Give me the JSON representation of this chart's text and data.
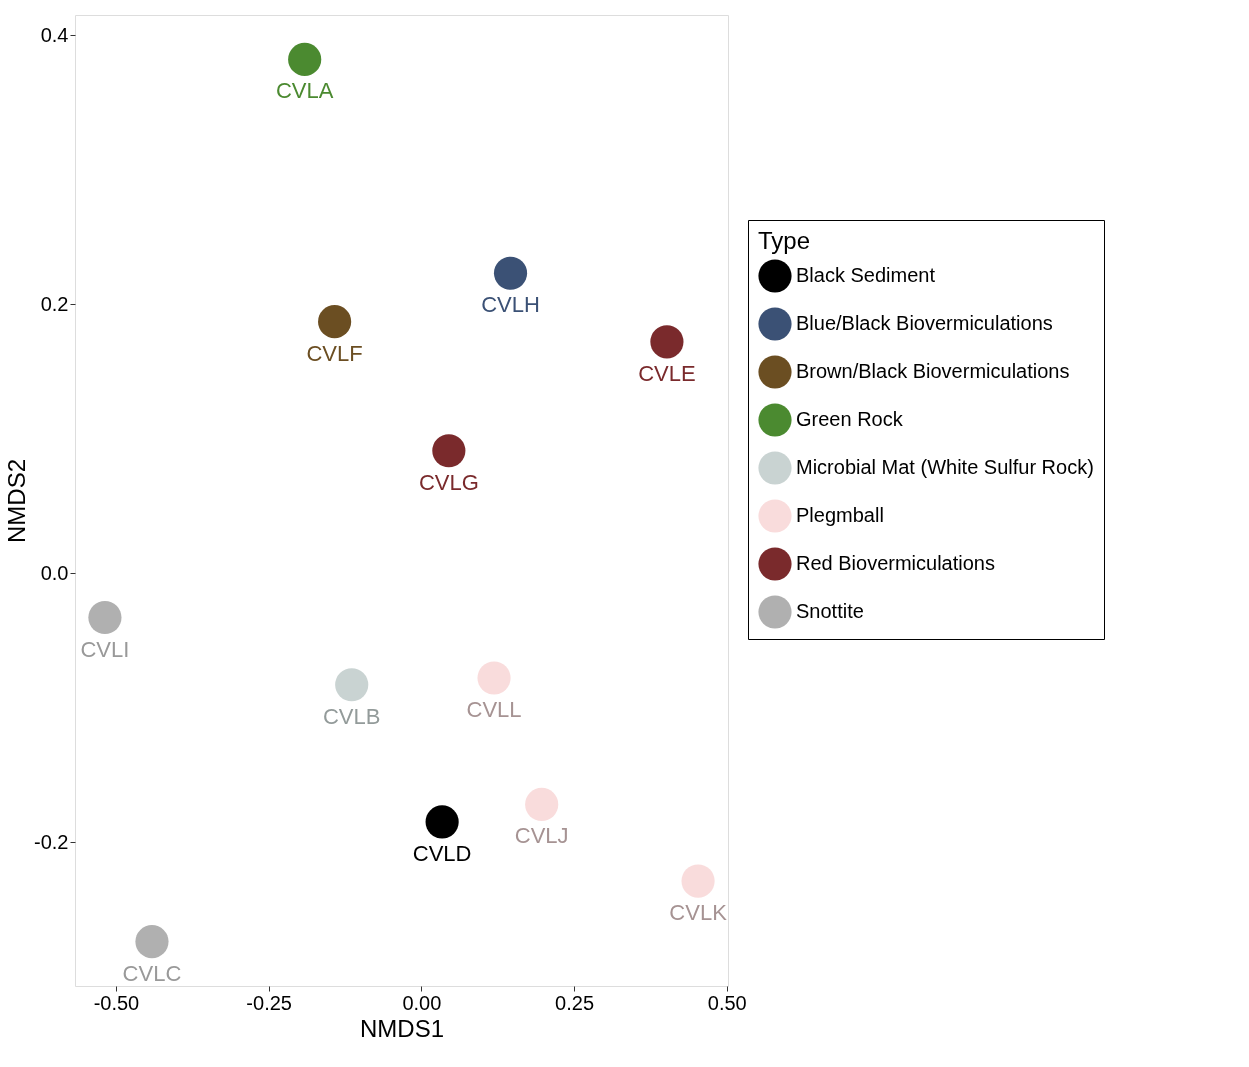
{
  "chart_data": {
    "type": "scatter",
    "xlabel": "NMDS1",
    "ylabel": "NMDS2",
    "legend_title": "Type",
    "legend": "right",
    "grid": false,
    "marker": "circle",
    "xlim": [
      -0.567,
      0.502
    ],
    "ylim": [
      -0.307,
      0.415
    ],
    "xticks": [
      {
        "value": -0.5,
        "label": "-0.50"
      },
      {
        "value": -0.25,
        "label": "-0.25"
      },
      {
        "value": 0,
        "label": "0.00"
      },
      {
        "value": 0.25,
        "label": "0.25"
      },
      {
        "value": 0.5,
        "label": "0.50"
      }
    ],
    "yticks": [
      {
        "value": -0.2,
        "label": "-0.2"
      },
      {
        "value": 0,
        "label": "0.0"
      },
      0.2,
      0.4
    ],
    "series": [
      {
        "name": "Black Sediment",
        "color": "#000000",
        "x": [
          0.034
        ],
        "values": [
          -0.185
        ]
      },
      {
        "name": "Blue/Black Biovermiculations",
        "color": "#3b5175",
        "x": [
          0.146
        ],
        "values": [
          0.223
        ]
      },
      {
        "name": "Brown/Black Biovermiculations",
        "color": "#6b4e22",
        "x": [
          -0.142
        ],
        "values": [
          0.187
        ]
      },
      {
        "name": "Green Rock",
        "color": "#4b8a30",
        "x": [
          -0.191
        ],
        "values": [
          0.382
        ]
      },
      {
        "name": "Microbial Mat (White Sulfur Rock)",
        "color": "#c9d3d2",
        "x": [
          -0.114
        ],
        "values": [
          -0.083
        ]
      },
      {
        "name": "Plegmball",
        "color": "#f9dcdc",
        "x": [
          0.119,
          0.197,
          0.453
        ],
        "values": [
          -0.078,
          -0.172,
          -0.229
        ]
      },
      {
        "name": "Red Biovermiculations",
        "color": "#7a2a2c",
        "x": [
          0.402,
          0.045
        ],
        "values": [
          0.172,
          0.091
        ]
      },
      {
        "name": "Snottite",
        "color": "#b0b0b0",
        "x": [
          -0.518,
          -0.441
        ],
        "values": [
          -0.033,
          -0.274
        ]
      }
    ],
    "annotations": [
      {
        "text": "CVLA",
        "x": -0.191,
        "y": 0.382
      },
      {
        "text": "CVLH",
        "x": 0.146,
        "y": 0.223
      },
      {
        "text": "CVLF",
        "x": -0.142,
        "y": 0.187
      },
      {
        "text": "CVLE",
        "x": 0.402,
        "y": 0.172
      },
      {
        "text": "CVLG",
        "x": 0.045,
        "y": 0.091
      },
      {
        "text": "CVLI",
        "x": -0.518,
        "y": -0.033
      },
      {
        "text": "CVLB",
        "x": -0.114,
        "y": -0.083
      },
      {
        "text": "CVLL",
        "x": 0.119,
        "y": -0.078
      },
      {
        "text": "CVLD",
        "x": 0.034,
        "y": -0.185
      },
      {
        "text": "CVLJ",
        "x": 0.197,
        "y": -0.172
      },
      {
        "text": "CVLK",
        "x": 0.453,
        "y": -0.229
      },
      {
        "text": "CVLC",
        "x": -0.441,
        "y": -0.274
      }
    ]
  }
}
